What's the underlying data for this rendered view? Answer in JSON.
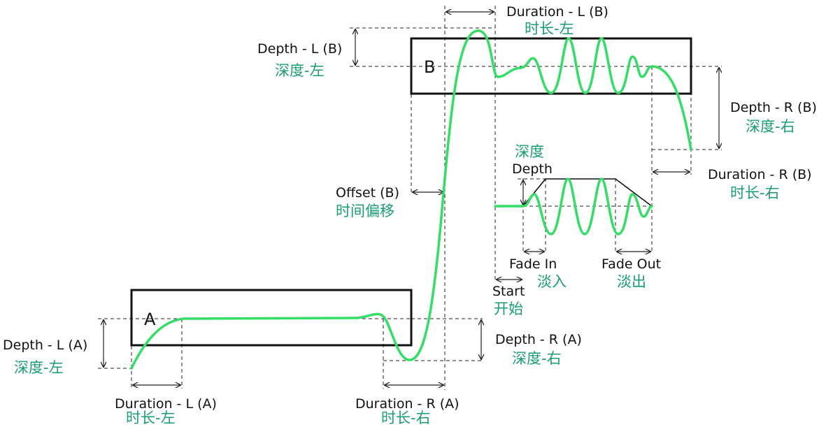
{
  "boxes": {
    "a": {
      "letter": "A"
    },
    "b": {
      "letter": "B"
    }
  },
  "labels": {
    "duration_l_b": {
      "en": "Duration - L (B)",
      "cn": "时长-左"
    },
    "depth_l_b": {
      "en": "Depth - L (B)",
      "cn": "深度-左"
    },
    "depth_r_b": {
      "en": "Depth - R (B)",
      "cn": "深度-右"
    },
    "duration_r_b": {
      "en": "Duration - R (B)",
      "cn": "时长-右"
    },
    "offset_b": {
      "en": "Offset (B)",
      "cn": "时间偏移"
    },
    "depth": {
      "en": "Depth",
      "cn": "深度"
    },
    "fade_in": {
      "en": "Fade In",
      "cn": "淡入"
    },
    "fade_out": {
      "en": "Fade Out",
      "cn": "淡出"
    },
    "start": {
      "en": "Start",
      "cn": "开始"
    },
    "depth_l_a": {
      "en": "Depth - L (A)",
      "cn": "深度-左"
    },
    "depth_r_a": {
      "en": "Depth - R (A)",
      "cn": "深度-右"
    },
    "duration_l_a": {
      "en": "Duration - L (A)",
      "cn": "时长-左"
    },
    "duration_r_a": {
      "en": "Duration - R (A)",
      "cn": "时长-右"
    }
  },
  "colors": {
    "wave": "#33dd66",
    "chinese_text": "#1a9e6e",
    "lines": "#222222"
  }
}
